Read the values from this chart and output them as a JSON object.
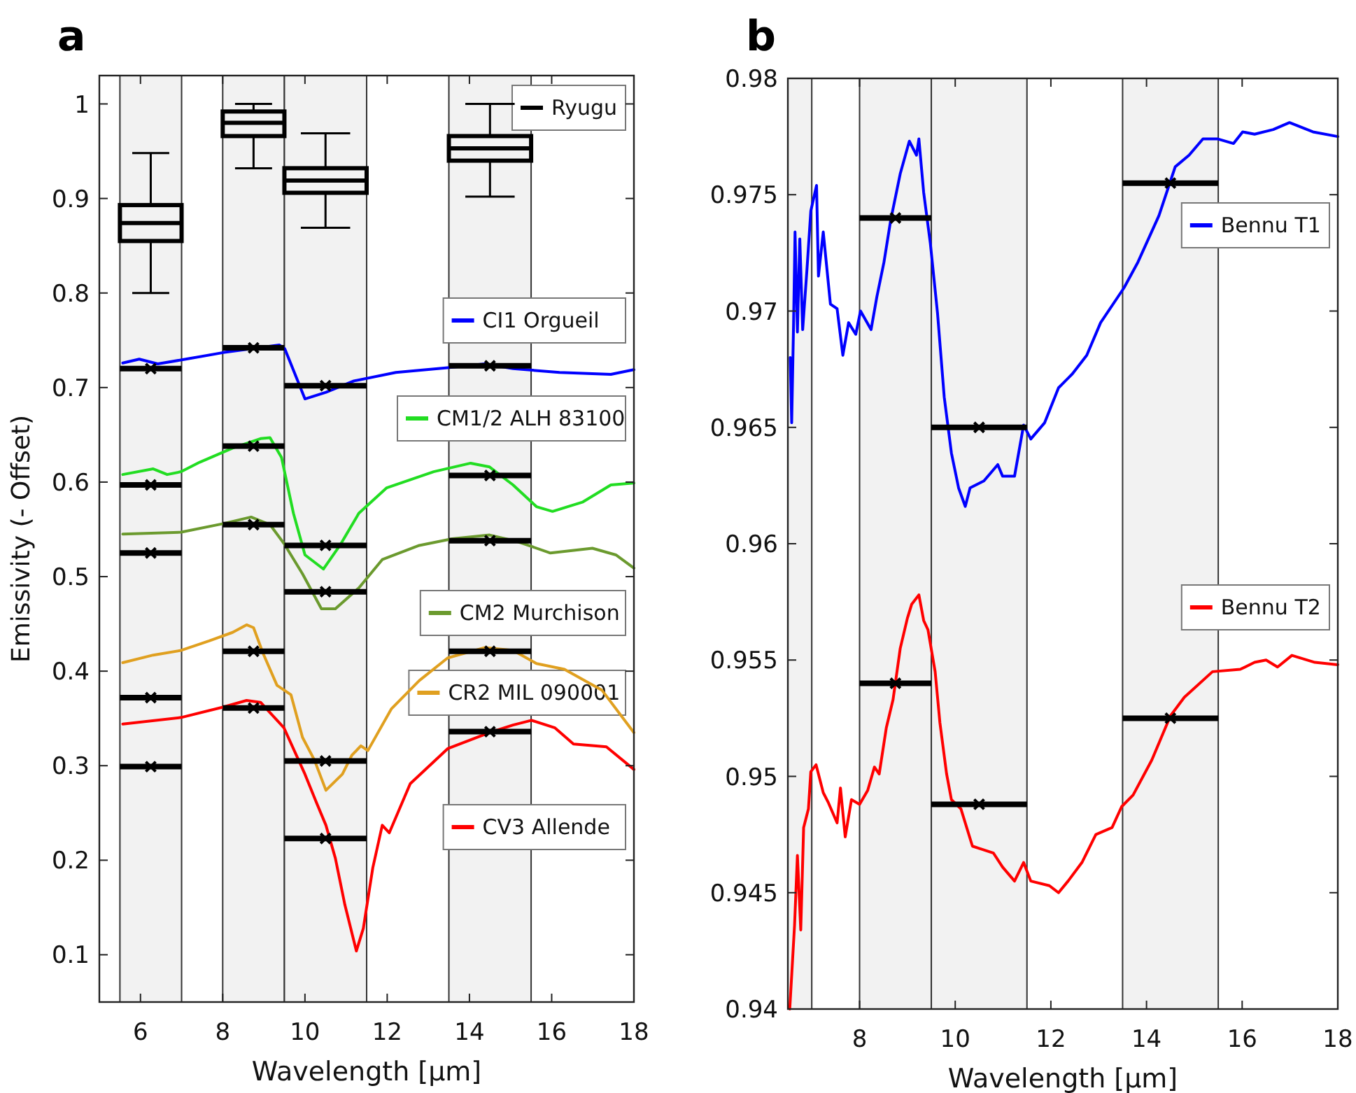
{
  "chart_data": [
    {
      "type": "line",
      "title": "a",
      "legend": "right",
      "xlabel": "Wavelength [μm]",
      "ylabel": "Emissivity (- Offset)",
      "xlim": [
        5,
        18
      ],
      "ylim": [
        0.05,
        1.03
      ],
      "xticks": [
        6,
        8,
        10,
        12,
        14,
        16,
        18
      ],
      "yticks": [
        0.1,
        0.2,
        0.3,
        0.4,
        0.5,
        0.6,
        0.7,
        0.8,
        0.9,
        1
      ],
      "bands": [
        {
          "axis": "x",
          "from": 5.5,
          "to": 7,
          "color": "#f2f2f2"
        },
        {
          "axis": "x",
          "from": 8,
          "to": 9.5,
          "color": "#f2f2f2"
        },
        {
          "axis": "x",
          "from": 9.5,
          "to": 11.5,
          "color": "#f2f2f2"
        },
        {
          "axis": "x",
          "from": 13.5,
          "to": 15.5,
          "color": "#f2f2f2"
        }
      ],
      "series": [
        {
          "name": "Ryugu",
          "type": "box",
          "color": "#000000",
          "x": [
            6.25,
            8.75,
            10.5,
            14.5
          ],
          "boxes": [
            {
              "low": 0.8,
              "q1": 0.855,
              "median": 0.874,
              "q3": 0.893,
              "high": 0.948
            },
            {
              "low": 0.932,
              "q1": 0.966,
              "median": 0.98,
              "q3": 0.992,
              "high": 1.0
            },
            {
              "low": 0.869,
              "q1": 0.906,
              "median": 0.919,
              "q3": 0.932,
              "high": 0.969
            },
            {
              "low": 0.902,
              "q1": 0.94,
              "median": 0.953,
              "q3": 0.966,
              "high": 1.0
            }
          ]
        },
        {
          "name": "CI1 Orgueil",
          "type": "line",
          "color": "#0000ff",
          "x": [
            5.57,
            5.97,
            6.42,
            7.1,
            8.01,
            9.38,
            9.51,
            10.0,
            10.51,
            11.19,
            12.21,
            13.47,
            14.38,
            15.06,
            16.19,
            17.44,
            18.0
          ],
          "values": [
            0.726,
            0.73,
            0.725,
            0.73,
            0.737,
            0.745,
            0.741,
            0.688,
            0.695,
            0.707,
            0.716,
            0.721,
            0.725,
            0.72,
            0.716,
            0.714,
            0.719
          ]
        },
        {
          "name": "CM1/2 ALH 83100",
          "type": "line",
          "color": "#22dd22",
          "x": [
            5.57,
            6.31,
            6.65,
            6.99,
            7.44,
            8.24,
            8.92,
            9.15,
            9.43,
            9.72,
            10.0,
            10.45,
            10.85,
            11.31,
            11.99,
            13.13,
            14.03,
            14.49,
            15.06,
            15.63,
            16.02,
            16.76,
            17.44,
            18.0
          ],
          "values": [
            0.608,
            0.614,
            0.608,
            0.611,
            0.621,
            0.636,
            0.646,
            0.647,
            0.626,
            0.567,
            0.523,
            0.508,
            0.533,
            0.567,
            0.594,
            0.611,
            0.62,
            0.616,
            0.597,
            0.574,
            0.569,
            0.579,
            0.597,
            0.599
          ]
        },
        {
          "name": "CM2 Murchison",
          "type": "line",
          "color": "#6b9a2e",
          "x": [
            5.57,
            6.99,
            8.01,
            8.69,
            9.15,
            9.49,
            9.94,
            10.4,
            10.74,
            11.31,
            11.88,
            12.78,
            13.58,
            14.49,
            15.17,
            15.97,
            16.99,
            17.56,
            18.0
          ],
          "values": [
            0.545,
            0.547,
            0.556,
            0.563,
            0.555,
            0.535,
            0.503,
            0.466,
            0.466,
            0.488,
            0.518,
            0.533,
            0.54,
            0.544,
            0.537,
            0.525,
            0.53,
            0.523,
            0.509
          ]
        },
        {
          "name": "CR2 MIL 090001",
          "type": "line",
          "color": "#e0a020",
          "x": [
            5.57,
            6.31,
            6.99,
            7.67,
            8.24,
            8.58,
            8.75,
            8.98,
            9.32,
            9.66,
            9.94,
            10.23,
            10.51,
            10.91,
            11.14,
            11.36,
            11.53,
            12.1,
            12.78,
            13.47,
            14.38,
            15.06,
            15.63,
            16.31,
            17.22,
            18.0
          ],
          "values": [
            0.409,
            0.417,
            0.422,
            0.432,
            0.441,
            0.449,
            0.446,
            0.419,
            0.385,
            0.375,
            0.33,
            0.306,
            0.274,
            0.291,
            0.311,
            0.321,
            0.316,
            0.36,
            0.39,
            0.414,
            0.425,
            0.422,
            0.408,
            0.402,
            0.38,
            0.335
          ]
        },
        {
          "name": "CV3 Allende",
          "type": "line",
          "color": "#ff0000",
          "x": [
            5.57,
            6.99,
            8.01,
            8.58,
            8.92,
            9.49,
            10.0,
            10.28,
            10.51,
            10.74,
            10.97,
            11.25,
            11.42,
            11.65,
            11.88,
            12.05,
            12.56,
            13.47,
            14.49,
            15.06,
            15.51,
            16.08,
            16.53,
            17.33,
            18.0
          ],
          "values": [
            0.344,
            0.351,
            0.362,
            0.369,
            0.367,
            0.34,
            0.291,
            0.261,
            0.237,
            0.202,
            0.153,
            0.104,
            0.128,
            0.192,
            0.237,
            0.229,
            0.281,
            0.318,
            0.335,
            0.343,
            0.348,
            0.34,
            0.323,
            0.32,
            0.296
          ]
        },
        {
          "type": "scatter",
          "marker": "cross",
          "color": "#000000",
          "x": [
            6.25,
            8.75,
            10.5,
            14.5
          ],
          "values": [
            0.72,
            0.742,
            0.702,
            0.723
          ],
          "xerrors": [
            0.75,
            0.75,
            1,
            1
          ]
        },
        {
          "type": "scatter",
          "marker": "cross",
          "color": "#000000",
          "x": [
            6.25,
            8.75,
            10.5,
            14.5
          ],
          "values": [
            0.597,
            0.638,
            0.533,
            0.607
          ],
          "xerrors": [
            0.75,
            0.75,
            1,
            1
          ]
        },
        {
          "type": "scatter",
          "marker": "cross",
          "color": "#000000",
          "x": [
            6.25,
            8.75,
            10.5,
            14.5
          ],
          "values": [
            0.525,
            0.555,
            0.484,
            0.538
          ],
          "xerrors": [
            0.75,
            0.75,
            1,
            1
          ]
        },
        {
          "type": "scatter",
          "marker": "cross",
          "color": "#000000",
          "x": [
            6.25,
            8.75,
            10.5,
            14.5
          ],
          "values": [
            0.372,
            0.421,
            0.305,
            0.421
          ],
          "xerrors": [
            0.75,
            0.75,
            1,
            1
          ]
        },
        {
          "type": "scatter",
          "marker": "cross",
          "color": "#000000",
          "x": [
            6.25,
            8.75,
            10.5,
            14.5
          ],
          "values": [
            0.299,
            0.361,
            0.223,
            0.336
          ],
          "xerrors": [
            0.75,
            0.75,
            1,
            1
          ]
        }
      ]
    },
    {
      "type": "line",
      "title": "b",
      "legend": "right",
      "xlabel": "Wavelength [μm]",
      "xlim": [
        6.5,
        18
      ],
      "ylim": [
        0.94,
        0.98
      ],
      "xticks": [
        8,
        10,
        12,
        14,
        16,
        18
      ],
      "yticks": [
        0.94,
        0.945,
        0.95,
        0.955,
        0.96,
        0.965,
        0.97,
        0.975,
        0.98
      ],
      "bands": [
        {
          "axis": "x",
          "from": 6.5,
          "to": 7,
          "color": "#f2f2f2"
        },
        {
          "axis": "x",
          "from": 8,
          "to": 9.5,
          "color": "#f2f2f2"
        },
        {
          "axis": "x",
          "from": 9.5,
          "to": 11.5,
          "color": "#f2f2f2"
        },
        {
          "axis": "x",
          "from": 13.5,
          "to": 15.5,
          "color": "#f2f2f2"
        }
      ],
      "series": [
        {
          "name": "Bennu T1",
          "type": "line",
          "color": "#0000ff",
          "x": [
            6.55,
            6.58,
            6.62,
            6.65,
            6.7,
            6.75,
            6.81,
            6.9,
            6.98,
            7.1,
            7.14,
            7.24,
            7.39,
            7.53,
            7.65,
            7.77,
            7.92,
            8.02,
            8.24,
            8.36,
            8.51,
            8.65,
            8.85,
            9.04,
            9.19,
            9.24,
            9.34,
            9.48,
            9.63,
            9.77,
            9.92,
            10.07,
            10.21,
            10.31,
            10.6,
            10.89,
            10.99,
            11.24,
            11.43,
            11.58,
            11.87,
            12.16,
            12.45,
            12.75,
            13.04,
            13.53,
            13.82,
            14.26,
            14.6,
            14.89,
            15.18,
            15.48,
            15.82,
            16.01,
            16.26,
            16.65,
            16.99,
            17.48,
            18.0
          ],
          "values": [
            0.968,
            0.9652,
            0.9695,
            0.9734,
            0.9691,
            0.9731,
            0.9692,
            0.9718,
            0.9743,
            0.9754,
            0.9715,
            0.9734,
            0.9703,
            0.9701,
            0.9681,
            0.9695,
            0.969,
            0.97,
            0.9692,
            0.9706,
            0.9721,
            0.9739,
            0.9759,
            0.9773,
            0.9767,
            0.9774,
            0.9751,
            0.9729,
            0.9699,
            0.9663,
            0.9639,
            0.9624,
            0.9616,
            0.9624,
            0.9627,
            0.9634,
            0.9629,
            0.9629,
            0.9651,
            0.9645,
            0.9652,
            0.9667,
            0.9673,
            0.9681,
            0.9695,
            0.971,
            0.9721,
            0.9741,
            0.9762,
            0.9767,
            0.9774,
            0.9774,
            0.9772,
            0.9777,
            0.9776,
            0.9778,
            0.9781,
            0.9777,
            0.9775
          ]
        },
        {
          "name": "Bennu T2",
          "type": "line",
          "color": "#ff0000",
          "x": [
            6.54,
            6.64,
            6.7,
            6.77,
            6.83,
            6.93,
            6.98,
            7.09,
            7.24,
            7.34,
            7.53,
            7.6,
            7.7,
            7.83,
            8.0,
            8.17,
            8.31,
            8.41,
            8.56,
            8.7,
            8.85,
            9.0,
            9.09,
            9.24,
            9.34,
            9.43,
            9.58,
            9.68,
            9.82,
            9.92,
            10.12,
            10.36,
            10.51,
            10.8,
            10.99,
            11.24,
            11.43,
            11.58,
            11.97,
            12.16,
            12.36,
            12.65,
            12.94,
            13.28,
            13.48,
            13.72,
            14.11,
            14.5,
            14.79,
            15.38,
            15.96,
            16.26,
            16.5,
            16.74,
            17.04,
            17.52,
            18.0
          ],
          "values": [
            0.94,
            0.9436,
            0.9466,
            0.9434,
            0.9478,
            0.9486,
            0.9502,
            0.9505,
            0.9493,
            0.9489,
            0.948,
            0.9495,
            0.9474,
            0.949,
            0.9488,
            0.9494,
            0.9504,
            0.9501,
            0.9521,
            0.9533,
            0.9555,
            0.9568,
            0.9574,
            0.9578,
            0.9567,
            0.9563,
            0.9545,
            0.9523,
            0.9501,
            0.949,
            0.9486,
            0.947,
            0.9469,
            0.9467,
            0.9461,
            0.9455,
            0.9463,
            0.9455,
            0.9453,
            0.945,
            0.9455,
            0.9463,
            0.9475,
            0.9478,
            0.9487,
            0.9492,
            0.9507,
            0.9526,
            0.9534,
            0.9545,
            0.9546,
            0.9549,
            0.955,
            0.9547,
            0.9552,
            0.9549,
            0.9548
          ]
        },
        {
          "type": "scatter",
          "marker": "cross",
          "color": "#000000",
          "x": [
            8.75,
            10.5,
            14.5
          ],
          "values": [
            0.974,
            0.965,
            0.9755
          ],
          "xerrors": [
            0.75,
            1,
            1
          ]
        },
        {
          "type": "scatter",
          "marker": "cross",
          "color": "#000000",
          "x": [
            8.75,
            10.5,
            14.5
          ],
          "values": [
            0.954,
            0.9488,
            0.9525
          ],
          "xerrors": [
            0.75,
            1,
            1
          ]
        }
      ]
    }
  ]
}
